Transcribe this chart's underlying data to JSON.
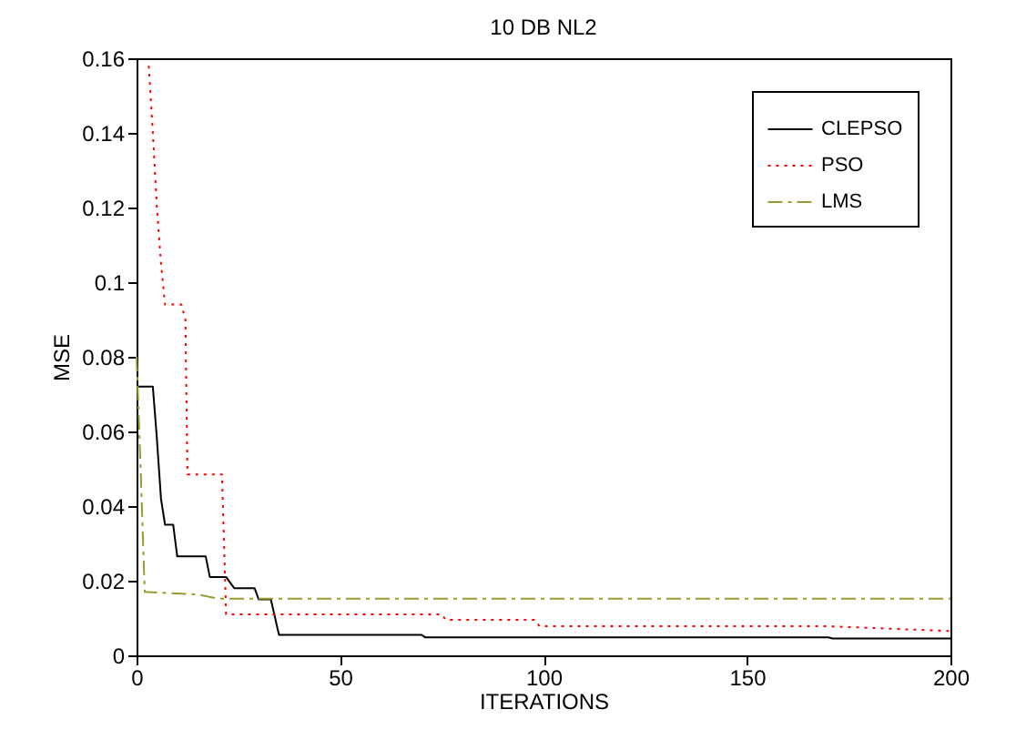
{
  "chart_data": {
    "type": "line",
    "title": "10 DB NL2",
    "xlabel": "ITERATIONS",
    "ylabel": "MSE",
    "xlim": [
      0,
      200
    ],
    "xticks": [
      0,
      50,
      100,
      150,
      200
    ],
    "ylim": [
      0,
      0.16
    ],
    "yticks": [
      0,
      0.02,
      0.04,
      0.06,
      0.08,
      0.1,
      0.12,
      0.14,
      0.16
    ],
    "grid": false,
    "legend": "top right",
    "series": [
      {
        "name": "CLEPSO",
        "color": "#000000",
        "line_style": "solid",
        "x": [
          0,
          4,
          5,
          6,
          7,
          9,
          10,
          17,
          18,
          22,
          24,
          29,
          30,
          33,
          35,
          70,
          71,
          170,
          171,
          200
        ],
        "values": [
          0.072,
          0.072,
          0.058,
          0.042,
          0.035,
          0.035,
          0.0265,
          0.0265,
          0.021,
          0.021,
          0.018,
          0.018,
          0.015,
          0.015,
          0.0055,
          0.0055,
          0.0048,
          0.0048,
          0.0045,
          0.0045
        ]
      },
      {
        "name": "PSO",
        "color": "#ff0000",
        "line_style": "dotted",
        "x": [
          3,
          4,
          5,
          6,
          7,
          11,
          12,
          12.5,
          21,
          22,
          75,
          76,
          98,
          99,
          170,
          200
        ],
        "values": [
          0.158,
          0.14,
          0.12,
          0.105,
          0.094,
          0.094,
          0.09,
          0.0485,
          0.0485,
          0.011,
          0.011,
          0.0095,
          0.0095,
          0.0078,
          0.0078,
          0.0065
        ]
      },
      {
        "name": "LMS",
        "color": "#9a9a30",
        "line_style": "dashed",
        "x": [
          0,
          1,
          2,
          15,
          20,
          200
        ],
        "values": [
          0.08,
          0.05,
          0.017,
          0.0163,
          0.0152,
          0.0152
        ]
      }
    ]
  }
}
